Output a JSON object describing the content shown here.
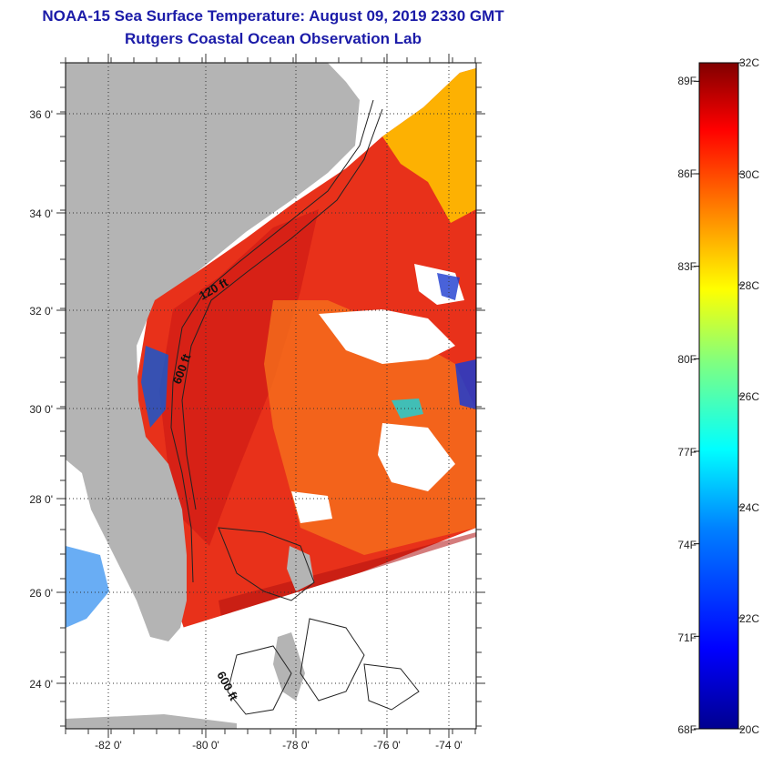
{
  "header": {
    "title_line1": "NOAA-15 Sea Surface Temperature:  August 09, 2019 2330 GMT",
    "title_line2": "Rutgers Coastal Ocean Observation Lab"
  },
  "map": {
    "lat_labels": [
      "36 0'",
      "34 0'",
      "32 0'",
      "30 0'",
      "28 0'",
      "26 0'",
      "24 0'"
    ],
    "lon_labels": [
      "-82 0'",
      "-80 0'",
      "-78 0'",
      "-76 0'",
      "-74 0'"
    ],
    "isobath_labels": [
      "120 ft",
      "600 ft",
      "600 ft"
    ],
    "colors": {
      "land": "#b4b4b4",
      "cloud": "#ffffff",
      "warm": "#e8311a",
      "hot": "#c81414",
      "mid": "#f5701c"
    }
  },
  "colorbar": {
    "fahrenheit_labels": [
      "89F",
      "86F",
      "83F",
      "80F",
      "77F",
      "74F",
      "71F",
      "68F"
    ],
    "celsius_labels": [
      "32C",
      "30C",
      "28C",
      "26C",
      "24C",
      "22C",
      "20C"
    ],
    "stops": [
      "#00008f",
      "#0000ff",
      "#0080ff",
      "#00ffff",
      "#80ff80",
      "#ffff00",
      "#ff8000",
      "#ff0000",
      "#800000"
    ]
  }
}
